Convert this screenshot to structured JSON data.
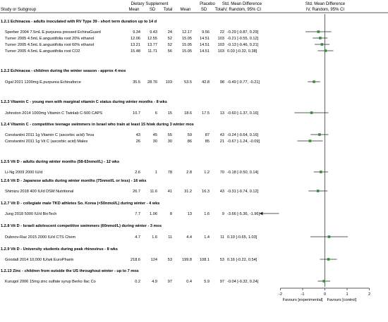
{
  "header": {
    "col_study": "Study or Subgroup",
    "group1": "Dietary Supplement",
    "group2": "Placebo",
    "smd_title": "Std. Mean Difference",
    "smd_method": "IV, Random, 95% CI",
    "sub_mean": "Mean",
    "sub_sd": "SD",
    "sub_total": "Total"
  },
  "chart_data": {
    "type": "forest",
    "xlim": [
      -2,
      2
    ],
    "xticks": [
      -2,
      -1,
      0,
      1,
      2
    ],
    "xtick_labels": [
      "-2",
      "-1",
      "0",
      "1",
      "2"
    ],
    "favours_left": "Favours [experimental]",
    "favours_right": "Favours [control]",
    "subgroups": [
      {
        "title": "1.2.1 Echinacea - adults inoculated with RV Type 39 - short term duration up to 14 d",
        "studies": [
          {
            "name": "Sperber 2004 7.5mL E.purpurea pressed EchinaGuard",
            "mean1": "9.34",
            "sd1": "9.43",
            "n1": "24",
            "mean2": "12.17",
            "sd2": "9.56",
            "n2": "22",
            "ci_text": "-0.29 [-0.87, 0.29]",
            "est": -0.29,
            "lo": -0.87,
            "hi": 0.29
          },
          {
            "name": "Turner 2005 4.5mL E.angustifolia root 20% ethanol",
            "mean1": "12.06",
            "sd1": "12.55",
            "n1": "52",
            "mean2": "15.05",
            "sd2": "14.51",
            "n2": "103",
            "ci_text": "-0.21 [-0.55, 0.12]",
            "est": -0.21,
            "lo": -0.55,
            "hi": 0.12
          },
          {
            "name": "Turner 2005 4.5mL E.angustifolia root 60% ethanol",
            "mean1": "13.21",
            "sd1": "13.77",
            "n1": "52",
            "mean2": "15.05",
            "sd2": "14.51",
            "n2": "103",
            "ci_text": "-0.13 [-0.46, 0.21]",
            "est": -0.13,
            "lo": -0.46,
            "hi": 0.21
          },
          {
            "name": "Turner 2005 4.5mL E.angustifolia root CO2",
            "mean1": "15.48",
            "sd1": "11.71",
            "n1": "56",
            "mean2": "15.05",
            "sd2": "14.51",
            "n2": "103",
            "ci_text": "0.03 [-0.32, 0.38]",
            "est": 0.03,
            "lo": -0.32,
            "hi": 0.38
          }
        ]
      },
      {
        "title": "1.2.2 Echinacea - children during the winter season - approx 4 mos",
        "studies": [
          {
            "name": "Ogal 2021 1200mg E.purpurea Echinaforce",
            "mean1": "35.5",
            "sd1": "28.76",
            "n1": "103",
            "mean2": "53.5",
            "sd2": "42.8",
            "n2": "98",
            "ci_text": "-0.49 [-0.77, -0.21]",
            "est": -0.49,
            "lo": -0.77,
            "hi": -0.21
          }
        ]
      },
      {
        "title": "1.2.3 Vitamin C - young men with marginal vitamin C status during winter months - 8 wks",
        "studies": [
          {
            "name": "Johnston 2014 1000mg Vitamin C Twinlab C-500 CAPS",
            "mean1": "10.7",
            "sd1": "6",
            "n1": "15",
            "mean2": "18.6",
            "sd2": "17.5",
            "n2": "13",
            "ci_text": "-0.60 [-1.37, 0.16]",
            "est": -0.6,
            "lo": -1.37,
            "hi": 0.16
          }
        ]
      },
      {
        "title": "1.2.4 Vitamin C - competitive teenage swimmers in Israel who train at least 15 h/wk during 3 winter mos",
        "studies": [
          {
            "name": "Constantini 2011 1g Vitamin C (ascorbic acid) Teva",
            "mean1": "43",
            "sd1": "45",
            "n1": "55",
            "mean2": "59",
            "sd2": "87",
            "n2": "43",
            "ci_text": "-0.24 [-0.64, 0.16]",
            "est": -0.24,
            "lo": -0.64,
            "hi": 0.16
          },
          {
            "name": "Constantini 2011 1g Vit C (ascorbic acid) Males",
            "mean1": "26",
            "sd1": "30",
            "n1": "30",
            "mean2": "86",
            "sd2": "85",
            "n2": "21",
            "ci_text": "-0.67 [-1.24, -0.09]",
            "est": -0.67,
            "lo": -1.24,
            "hi": -0.09
          }
        ]
      },
      {
        "title": "1.2.5 Vit D - adults during winter months (58-63nmol/L) - 12 wks",
        "studies": [
          {
            "name": "Li-Ng 2009 2000 IU/d",
            "mean1": "2.6",
            "sd1": "1",
            "n1": "78",
            "mean2": "2.8",
            "sd2": "1.2",
            "n2": "70",
            "ci_text": "-0.18 [-0.50, 0.14]",
            "est": -0.18,
            "lo": -0.5,
            "hi": 0.14
          }
        ]
      },
      {
        "title": "1.2.6 Vit D - Japanese adults during winter months (75nmol/L or less) - 16 wks",
        "studies": [
          {
            "name": "Shimizu 2018 400 IU/d DSM Nutritional",
            "mean1": "26.7",
            "sd1": "11.6",
            "n1": "41",
            "mean2": "31.2",
            "sd2": "16.3",
            "n2": "43",
            "ci_text": "-0.31 [-0.74, 0.12]",
            "est": -0.31,
            "lo": -0.74,
            "hi": 0.12
          }
        ]
      },
      {
        "title": "1.2.7 Vit D - collegiate male TKD athletes So. Korea (<50nmol/L) during winter - 4 wks",
        "studies": [
          {
            "name": "Jung 2018 5000 IU/d BioTech",
            "mean1": "7.7",
            "sd1": "1.06",
            "n1": "8",
            "mean2": "13",
            "sd2": "1.6",
            "n2": "9",
            "ci_text": "-3.66 [-5.36, -1.96]",
            "est": -3.66,
            "lo": -5.36,
            "hi": -1.96
          }
        ]
      },
      {
        "title": "1.2.8 Vit D - Israeli adolescent competitive swimmers (60nmol/L) during winter - 3 mos",
        "studies": [
          {
            "name": "Dubnov-Raz 2015 2000 IU/d CTS Chem",
            "mean1": "4.7",
            "sd1": "1.6",
            "n1": "11",
            "mean2": "4.4",
            "sd2": "1.4",
            "n2": "11",
            "ci_text": "0.19 [-0.65, 1.03]",
            "est": 0.19,
            "lo": -0.65,
            "hi": 1.03
          }
        ]
      },
      {
        "title": "1.2.9 Vit D - University students during peak rhinovirus - 8 wks",
        "studies": [
          {
            "name": "Goodall 2014 10,000 IU/wk EuroPharm",
            "mean1": "218.6",
            "sd1": "124",
            "n1": "53",
            "mean2": "199.8",
            "sd2": "108.1",
            "n2": "53",
            "ci_text": "0.16 [-0.22, 0.54]",
            "est": 0.16,
            "lo": -0.22,
            "hi": 0.54
          }
        ]
      },
      {
        "title": "1.2.13 Zinc - children from outside the US throughout winter - up to 7 mos",
        "studies": [
          {
            "name": "Kurugol 2006 15mg zinc sulfate syrup Berko Ilac Co",
            "mean1": "0.2",
            "sd1": "4.9",
            "n1": "97",
            "mean2": "0.4",
            "sd2": "5.9",
            "n2": "97",
            "ci_text": "-0.04 [-0.32, 0.24]",
            "est": -0.04,
            "lo": -0.32,
            "hi": 0.24
          }
        ]
      }
    ]
  },
  "colors": {
    "marker": "#3a8a3a",
    "line": "#222222",
    "text": "#111111"
  }
}
